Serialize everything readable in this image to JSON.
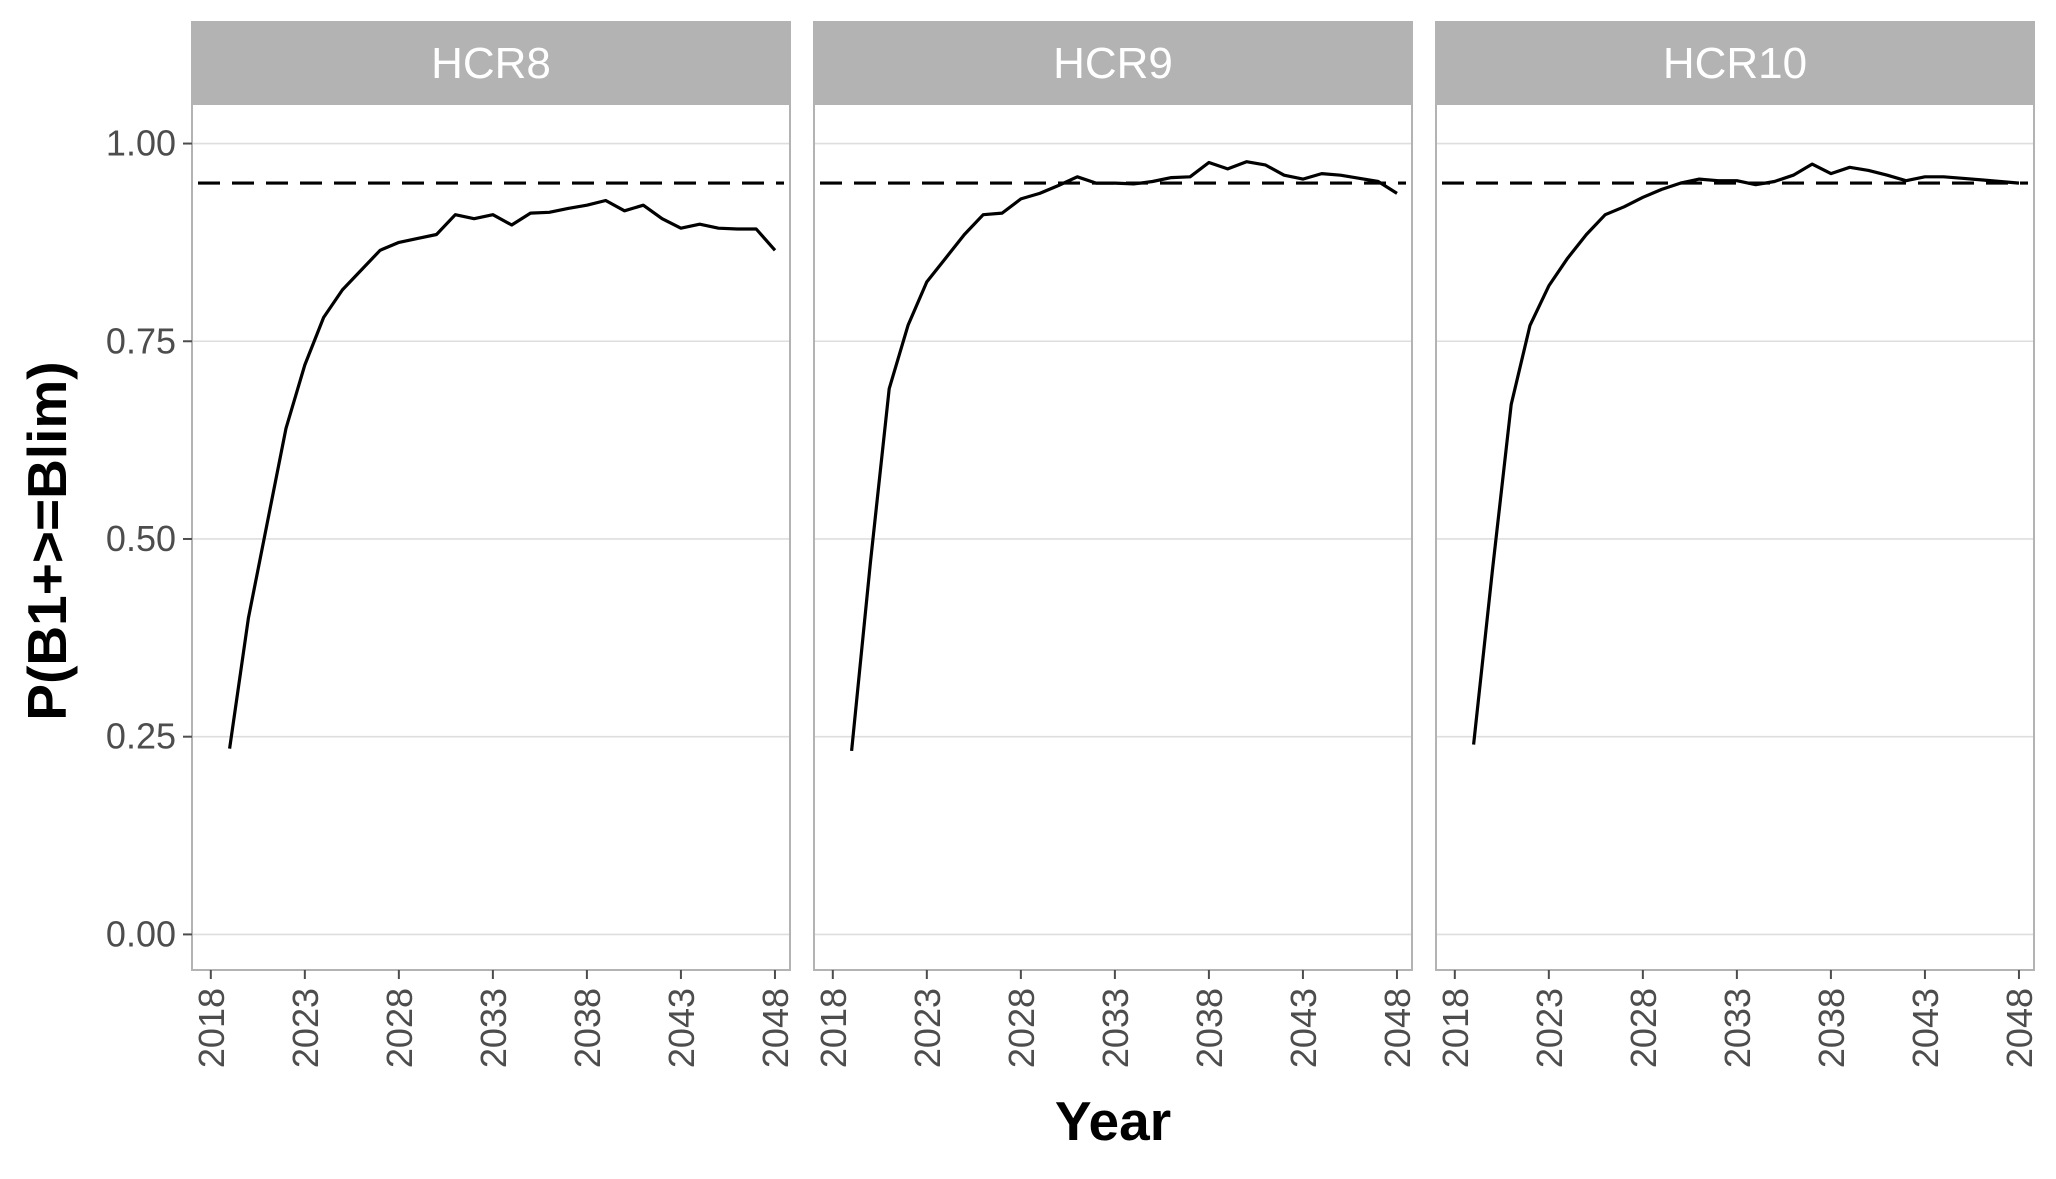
{
  "chart_data": {
    "type": "line",
    "facet": "panels",
    "xlabel": "Year",
    "ylabel": "P(B1+>=Blim)",
    "xlim": [
      2017,
      2048.8
    ],
    "ylim": [
      -0.045,
      1.05
    ],
    "x_ticks": [
      2018,
      2023,
      2028,
      2033,
      2038,
      2043,
      2048
    ],
    "y_ticks": [
      0.0,
      0.25,
      0.5,
      0.75,
      1.0
    ],
    "y_tick_labels": [
      "0.00",
      "0.25",
      "0.50",
      "0.75",
      "1.00"
    ],
    "reference_line": {
      "y": 0.95,
      "style": "dashed"
    },
    "grid": true,
    "panels": [
      {
        "title": "HCR8",
        "x": [
          2019,
          2020,
          2021,
          2022,
          2023,
          2024,
          2025,
          2026,
          2027,
          2028,
          2029,
          2030,
          2031,
          2032,
          2033,
          2034,
          2035,
          2036,
          2037,
          2038,
          2039,
          2040,
          2041,
          2042,
          2043,
          2044,
          2045,
          2046,
          2047,
          2048
        ],
        "y": [
          0.235,
          0.4,
          0.52,
          0.64,
          0.72,
          0.78,
          0.815,
          0.84,
          0.865,
          0.875,
          0.88,
          0.885,
          0.91,
          0.905,
          0.91,
          0.897,
          0.912,
          0.913,
          0.918,
          0.922,
          0.928,
          0.915,
          0.922,
          0.905,
          0.893,
          0.898,
          0.893,
          0.892,
          0.892,
          0.865
        ]
      },
      {
        "title": "HCR9",
        "x": [
          2019,
          2020,
          2021,
          2022,
          2023,
          2024,
          2025,
          2026,
          2027,
          2028,
          2029,
          2030,
          2031,
          2032,
          2033,
          2034,
          2035,
          2036,
          2037,
          2038,
          2039,
          2040,
          2041,
          2042,
          2043,
          2044,
          2045,
          2046,
          2047,
          2048
        ],
        "y": [
          0.232,
          0.47,
          0.69,
          0.77,
          0.825,
          0.855,
          0.885,
          0.91,
          0.912,
          0.93,
          0.937,
          0.947,
          0.958,
          0.95,
          0.95,
          0.949,
          0.952,
          0.957,
          0.958,
          0.976,
          0.968,
          0.977,
          0.973,
          0.96,
          0.955,
          0.962,
          0.96,
          0.956,
          0.952,
          0.937
        ]
      },
      {
        "title": "HCR10",
        "x": [
          2019,
          2020,
          2021,
          2022,
          2023,
          2024,
          2025,
          2026,
          2027,
          2028,
          2029,
          2030,
          2031,
          2032,
          2033,
          2034,
          2035,
          2036,
          2037,
          2038,
          2039,
          2040,
          2041,
          2042,
          2043,
          2044,
          2045,
          2046,
          2047,
          2048
        ],
        "y": [
          0.24,
          0.46,
          0.67,
          0.77,
          0.82,
          0.855,
          0.885,
          0.91,
          0.92,
          0.932,
          0.942,
          0.95,
          0.955,
          0.953,
          0.953,
          0.948,
          0.952,
          0.96,
          0.974,
          0.962,
          0.97,
          0.966,
          0.96,
          0.953,
          0.958,
          0.958,
          0.956,
          0.954,
          0.952,
          0.95
        ]
      }
    ]
  }
}
